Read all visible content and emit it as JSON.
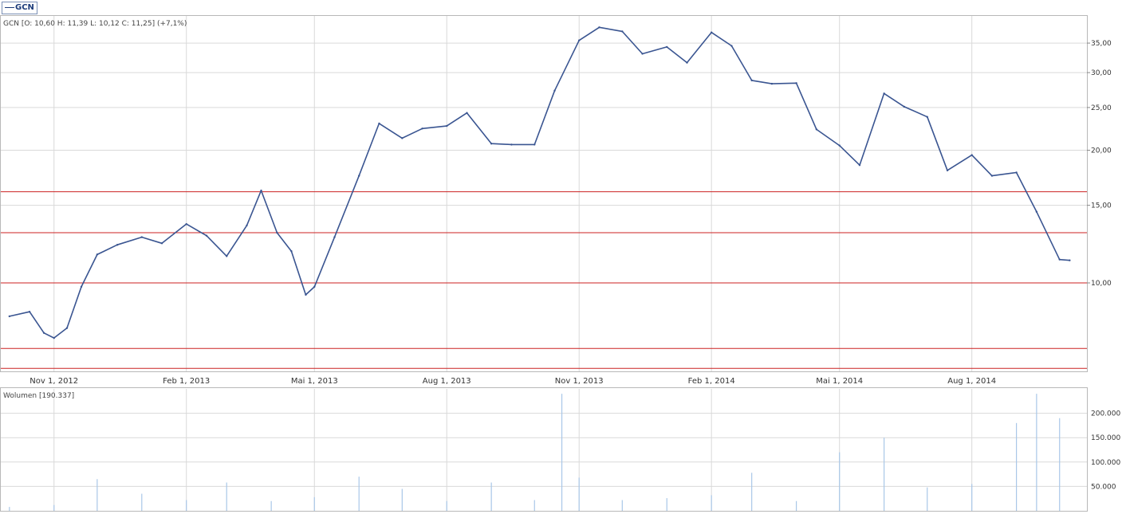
{
  "legend": {
    "symbol": "GCN"
  },
  "price_panel": {
    "ohlc_label": "GCN [O: 10,60  H: 11,39  L: 10,12  C: 11,25] (+7,1%)",
    "y_ticks": [
      "10,00",
      "15,00",
      "20,00",
      "25,00",
      "30,00",
      "35,00"
    ],
    "x_ticks": [
      "Nov 1, 2012",
      "Feb 1, 2013",
      "Mai 1, 2013",
      "Aug 1, 2013",
      "Nov 1, 2013",
      "Feb 1, 2014",
      "Mai 1, 2014",
      "Aug 1, 2014"
    ]
  },
  "volume_panel": {
    "label": "Wolumen [190.337]",
    "y_ticks": [
      "50.000",
      "100.000",
      "150.000",
      "200.000"
    ]
  },
  "colors": {
    "price_series": "#3a5591",
    "volume_bars": "#a9c7e8",
    "support_lines": "#cc2222",
    "grid": "#d9d9d9"
  },
  "chart_data": {
    "type": "line",
    "series": [
      {
        "name": "GCN",
        "x": [
          "2012-10-01",
          "2012-10-15",
          "2012-10-25",
          "2012-11-01",
          "2012-11-10",
          "2012-11-20",
          "2012-12-01",
          "2012-12-15",
          "2013-01-01",
          "2013-01-15",
          "2013-02-01",
          "2013-02-15",
          "2013-03-01",
          "2013-03-15",
          "2013-03-25",
          "2013-04-05",
          "2013-04-15",
          "2013-04-25",
          "2013-05-01",
          "2013-05-15",
          "2013-06-01",
          "2013-06-15",
          "2013-07-01",
          "2013-07-15",
          "2013-08-01",
          "2013-08-15",
          "2013-09-01",
          "2013-09-15",
          "2013-10-01",
          "2013-10-15",
          "2013-11-01",
          "2013-11-15",
          "2013-12-01",
          "2013-12-15",
          "2014-01-01",
          "2014-01-15",
          "2014-02-01",
          "2014-02-15",
          "2014-03-01",
          "2014-03-15",
          "2014-04-01",
          "2014-04-15",
          "2014-05-01",
          "2014-05-15",
          "2014-06-01",
          "2014-06-15",
          "2014-07-01",
          "2014-07-15",
          "2014-08-01",
          "2014-08-15",
          "2014-09-01",
          "2014-09-15",
          "2014-10-01",
          "2014-10-08"
        ],
        "values": [
          8.4,
          8.6,
          7.7,
          7.5,
          7.9,
          9.8,
          11.6,
          12.2,
          12.7,
          12.3,
          13.6,
          12.8,
          11.5,
          13.5,
          16.2,
          13.0,
          11.8,
          9.4,
          9.8,
          12.7,
          17.5,
          23.0,
          21.3,
          22.4,
          22.7,
          24.3,
          20.7,
          20.6,
          20.6,
          27.3,
          35.5,
          38.0,
          37.2,
          33.1,
          34.3,
          31.6,
          37.0,
          34.5,
          28.8,
          28.3,
          28.4,
          22.3,
          20.5,
          18.5,
          26.9,
          25.1,
          23.8,
          18.0,
          19.5,
          17.5,
          17.8,
          14.5,
          11.3,
          11.25
        ]
      }
    ],
    "volume": {
      "name": "Wolumen",
      "x": [
        "2012-10-01",
        "2012-11-01",
        "2012-12-01",
        "2013-01-01",
        "2013-02-01",
        "2013-03-01",
        "2013-04-01",
        "2013-05-01",
        "2013-06-01",
        "2013-07-01",
        "2013-08-01",
        "2013-09-01",
        "2013-10-01",
        "2013-10-20",
        "2013-11-01",
        "2013-12-01",
        "2014-01-01",
        "2014-02-01",
        "2014-03-01",
        "2014-04-01",
        "2014-05-01",
        "2014-06-01",
        "2014-07-01",
        "2014-08-01",
        "2014-09-01",
        "2014-09-15",
        "2014-10-01"
      ],
      "values": [
        8000,
        12000,
        65000,
        35000,
        22000,
        58000,
        20000,
        28000,
        70000,
        45000,
        20000,
        58000,
        22000,
        240000,
        68000,
        22000,
        26000,
        32000,
        78000,
        20000,
        120000,
        150000,
        48000,
        55000,
        180000,
        240000,
        190000
      ]
    },
    "horizontal_lines": [
      6.4,
      7.1,
      10.0,
      13.0,
      16.1
    ],
    "y_scale": "log",
    "ylim": [
      6.3,
      40
    ],
    "volume_ylim": [
      0,
      250000
    ],
    "xlim": [
      "2012-09-25",
      "2014-10-20"
    ],
    "grid": true
  }
}
